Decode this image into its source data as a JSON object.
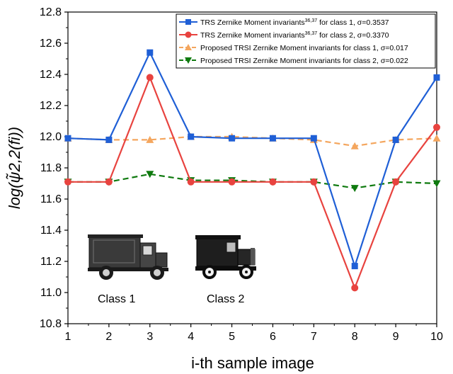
{
  "chart_data": {
    "type": "line",
    "title": "",
    "xlabel": "i-th sample image",
    "ylabel": "log(ψ̃2,2(fi))",
    "x": [
      1,
      2,
      3,
      4,
      5,
      6,
      7,
      8,
      9,
      10
    ],
    "xlim": [
      1,
      10
    ],
    "ylim": [
      10.8,
      12.8
    ],
    "yticks": [
      10.8,
      11.0,
      11.2,
      11.4,
      11.6,
      11.8,
      12.0,
      12.2,
      12.4,
      12.6,
      12.8
    ],
    "ytick_labels": [
      "10.8",
      "11.0",
      "11.2",
      "11.4",
      "11.6",
      "11.8",
      "12.0",
      "12.2",
      "12.4",
      "12.6",
      "12.8"
    ],
    "xtick_labels": [
      "1",
      "2",
      "3",
      "4",
      "5",
      "6",
      "7",
      "8",
      "9",
      "10"
    ],
    "grid": false,
    "legend_position": "top-right",
    "series": [
      {
        "name": "TRS Zernike Moment invariants36,37 for class 1, σ=0.3537",
        "legend_main": "TRS Zernike Moment invariants",
        "legend_sup": "36,37",
        "legend_rest": " for class 1, σ=0.3537",
        "color": "#1f5fd6",
        "marker": "square",
        "line_style": "solid",
        "values": [
          11.99,
          11.98,
          12.54,
          12.0,
          11.99,
          11.99,
          11.99,
          11.17,
          11.98,
          12.38
        ]
      },
      {
        "name": "TRS Zernike Moment invariants36,37 for class 2, σ=0.3370",
        "legend_main": "TRS Zernike Moment invariants",
        "legend_sup": "36,37",
        "legend_rest": " for class 2, σ=0.3370",
        "color": "#e8433f",
        "marker": "circle",
        "line_style": "solid",
        "values": [
          11.71,
          11.71,
          12.38,
          11.71,
          11.71,
          11.71,
          11.71,
          11.03,
          11.71,
          12.06
        ]
      },
      {
        "name": "Proposed TRSI Zernike Moment invariants for class 1, σ=0.017",
        "legend_main": "Proposed TRSI Zernike Moment invariants for class 1, σ=0.017",
        "legend_sup": "",
        "legend_rest": "",
        "color": "#f4a65e",
        "marker": "triangle-up",
        "line_style": "dashed",
        "values": [
          11.99,
          11.98,
          11.98,
          12.0,
          12.0,
          11.99,
          11.98,
          11.94,
          11.98,
          11.99
        ]
      },
      {
        "name": "Proposed TRSI Zernike Moment invariants for class 2, σ=0.022",
        "legend_main": "Proposed TRSI Zernike Moment invariants for class 2, σ=0.022",
        "legend_sup": "",
        "legend_rest": "",
        "color": "#0f7a0f",
        "marker": "triangle-down",
        "line_style": "dashed",
        "values": [
          11.71,
          11.71,
          11.76,
          11.72,
          11.72,
          11.71,
          11.71,
          11.67,
          11.71,
          11.7
        ]
      }
    ],
    "annotations": [
      {
        "text": "Class 1",
        "image": "truck-class-1"
      },
      {
        "text": "Class 2",
        "image": "truck-class-2"
      }
    ]
  }
}
